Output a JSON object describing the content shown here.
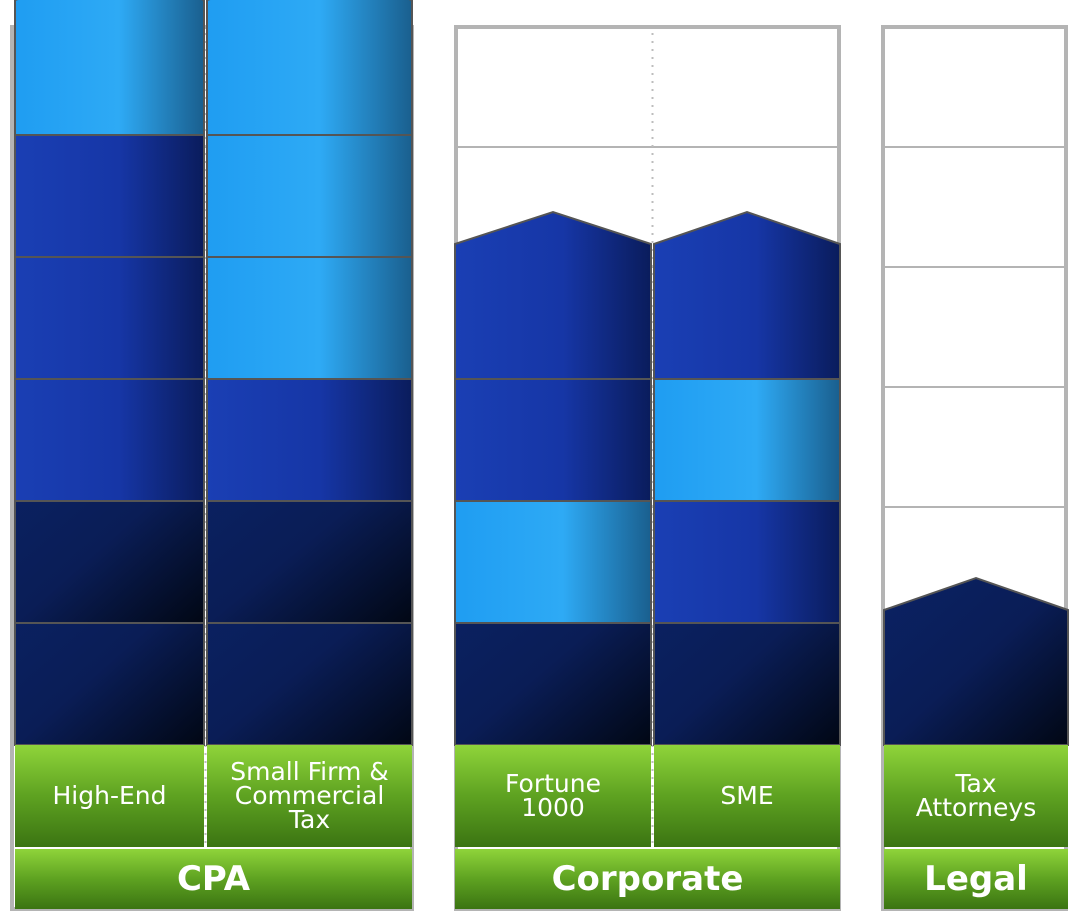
{
  "groups": [
    {
      "id": "cpa",
      "label": "CPA",
      "columns": [
        {
          "id": "high-end",
          "label": "High-End",
          "blocks": [
            "dark",
            "dark",
            "mid",
            "mid",
            "mid",
            "light"
          ]
        },
        {
          "id": "small-firm",
          "label": "Small Firm &\nCommercial\nTax",
          "blocks": [
            "dark",
            "dark",
            "mid",
            "light",
            "light",
            "light"
          ]
        }
      ]
    },
    {
      "id": "corporate",
      "label": "Corporate",
      "columns": [
        {
          "id": "fortune-1000",
          "label": "Fortune\n1000",
          "blocks": [
            "dark",
            "light",
            "mid",
            "mid"
          ]
        },
        {
          "id": "sme",
          "label": "SME",
          "blocks": [
            "dark",
            "mid",
            "light",
            "mid"
          ]
        }
      ]
    },
    {
      "id": "legal",
      "label": "Legal",
      "columns": [
        {
          "id": "tax-attorneys",
          "label": "Tax\nAttorneys",
          "blocks": [
            "dark"
          ]
        }
      ]
    }
  ],
  "colors": {
    "light": [
      "#1f9df2",
      "#2eaaf5",
      "#1a5f8e"
    ],
    "mid": [
      "#1a3fb4",
      "#1636a6",
      "#0a1c5c"
    ],
    "dark": [
      "#0a1d56",
      "#0b2264",
      "#010714"
    ],
    "green": [
      "#8fd43a",
      "#5ea221",
      "#3b7412"
    ],
    "frame": "#b4b4b4",
    "block_stroke": "#555555"
  }
}
